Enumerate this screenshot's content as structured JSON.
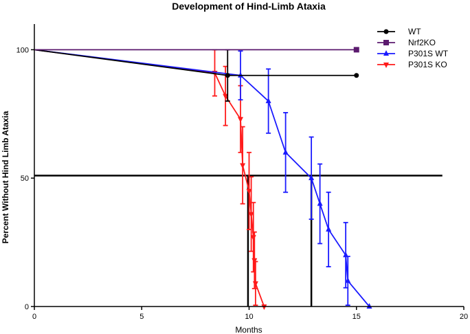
{
  "chart_data": {
    "type": "line",
    "title": "Development of Hind-Limb Ataxia",
    "xlabel": "Months",
    "ylabel": "Percent Without Hind Limb Ataxia",
    "xlim": [
      0,
      20
    ],
    "ylim": [
      0,
      110
    ],
    "xticks": [
      0,
      5,
      10,
      15,
      20
    ],
    "yticks": [
      0,
      50,
      100
    ],
    "grid": false,
    "legend_position": "top-right",
    "series": [
      {
        "name": "WT",
        "color": "#000000",
        "marker": "circle",
        "points": [
          {
            "x": 0,
            "y": 100
          },
          {
            "x": 9.0,
            "y": 90,
            "err": 10
          },
          {
            "x": 15.0,
            "y": 90
          }
        ]
      },
      {
        "name": "Nrf2KO",
        "color": "#5b1a6e",
        "marker": "square",
        "points": [
          {
            "x": 0,
            "y": 100
          },
          {
            "x": 15.0,
            "y": 100
          }
        ]
      },
      {
        "name": "P301S WT",
        "color": "#1a1aff",
        "marker": "triangle-up",
        "points": [
          {
            "x": 0,
            "y": 100
          },
          {
            "x": 9.6,
            "y": 90,
            "err": 9.5
          },
          {
            "x": 10.9,
            "y": 80,
            "err": 12.5
          },
          {
            "x": 11.7,
            "y": 60,
            "err": 15.5
          },
          {
            "x": 12.9,
            "y": 50,
            "err": 16
          },
          {
            "x": 13.3,
            "y": 40,
            "err": 15.5
          },
          {
            "x": 13.7,
            "y": 30,
            "err": 14.5
          },
          {
            "x": 14.5,
            "y": 20,
            "err": 12.7
          },
          {
            "x": 14.6,
            "y": 10,
            "err": 9.5
          },
          {
            "x": 15.6,
            "y": 0
          }
        ]
      },
      {
        "name": "P301S KO",
        "color": "#ff1a1a",
        "marker": "triangle-down",
        "points": [
          {
            "x": 0,
            "y": 100
          },
          {
            "x": 8.4,
            "y": 91,
            "err": 9
          },
          {
            "x": 8.9,
            "y": 82,
            "err": 11.5
          },
          {
            "x": 9.6,
            "y": 73,
            "err": 13
          },
          {
            "x": 9.7,
            "y": 55,
            "err": 15
          },
          {
            "x": 10.0,
            "y": 45,
            "err": 15
          },
          {
            "x": 10.1,
            "y": 36,
            "err": 14.5
          },
          {
            "x": 10.2,
            "y": 27,
            "err": 13.5
          },
          {
            "x": 10.25,
            "y": 18,
            "err": 11
          },
          {
            "x": 10.3,
            "y": 9,
            "err": 8.5
          },
          {
            "x": 10.7,
            "y": 0
          }
        ]
      }
    ],
    "reference_lines": {
      "horizontal": {
        "y": 51,
        "x_from": 0,
        "x_to": 19
      },
      "vertical": [
        {
          "x": 9.95,
          "y_from": 0,
          "y_to": 51
        },
        {
          "x": 12.9,
          "y_from": 0,
          "y_to": 51
        }
      ]
    }
  }
}
